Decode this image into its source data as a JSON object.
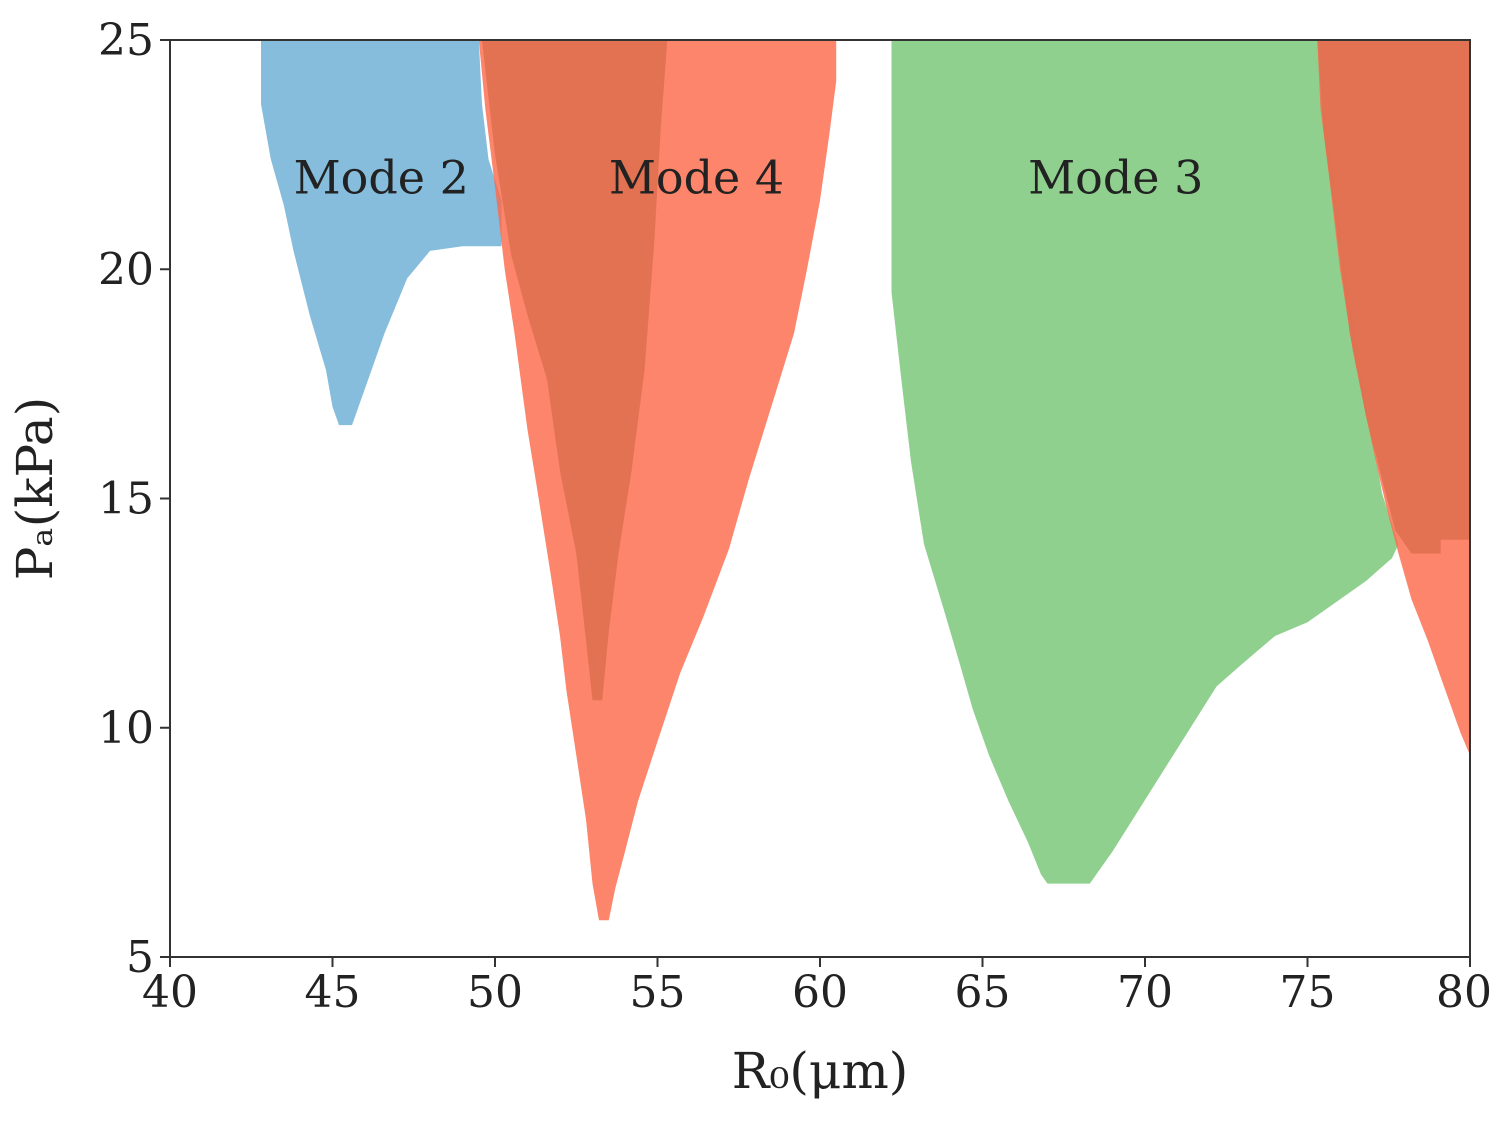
{
  "chart_data": {
    "type": "area",
    "title": "",
    "xlabel": "R₀(μm)",
    "ylabel": "Pₐ(kPa)",
    "xlim": [
      40,
      80
    ],
    "ylim": [
      5,
      25
    ],
    "xticks": [
      40,
      45,
      50,
      55,
      60,
      65,
      70,
      75,
      80
    ],
    "yticks": [
      5,
      10,
      15,
      20,
      25
    ],
    "grid": false,
    "legend": "none",
    "series": [
      {
        "name": "Mode 2",
        "color": "#6baed6",
        "opacity": 0.82,
        "outline": [
          [
            42.8,
            25
          ],
          [
            42.8,
            23.6
          ],
          [
            43.1,
            22.4
          ],
          [
            43.5,
            21.4
          ],
          [
            43.8,
            20.4
          ],
          [
            44.3,
            19.0
          ],
          [
            44.8,
            17.8
          ],
          [
            45.0,
            17.0
          ],
          [
            45.2,
            16.6
          ],
          [
            45.6,
            16.6
          ],
          [
            46.0,
            17.4
          ],
          [
            46.6,
            18.6
          ],
          [
            47.3,
            19.8
          ],
          [
            48.0,
            20.4
          ],
          [
            49.0,
            20.5
          ],
          [
            50.2,
            20.5
          ],
          [
            50.2,
            21.5
          ],
          [
            49.8,
            22.4
          ],
          [
            49.6,
            23.6
          ],
          [
            49.5,
            25
          ]
        ]
      },
      {
        "name": "Mode 4",
        "color": "#fb6a4a",
        "opacity": 0.82,
        "outline": [
          [
            49.5,
            25
          ],
          [
            49.7,
            23.5
          ],
          [
            50.0,
            21.8
          ],
          [
            50.3,
            20.0
          ],
          [
            50.6,
            18.6
          ],
          [
            51.0,
            16.5
          ],
          [
            51.3,
            15.2
          ],
          [
            51.7,
            13.4
          ],
          [
            52.0,
            12.0
          ],
          [
            52.2,
            10.8
          ],
          [
            52.5,
            9.4
          ],
          [
            52.8,
            8.0
          ],
          [
            53.0,
            6.6
          ],
          [
            53.2,
            5.8
          ],
          [
            53.5,
            5.8
          ],
          [
            53.7,
            6.5
          ],
          [
            54.0,
            7.3
          ],
          [
            54.4,
            8.4
          ],
          [
            55.0,
            9.7
          ],
          [
            55.7,
            11.2
          ],
          [
            56.4,
            12.4
          ],
          [
            57.2,
            13.9
          ],
          [
            57.8,
            15.4
          ],
          [
            58.5,
            17.0
          ],
          [
            59.2,
            18.6
          ],
          [
            59.6,
            20.0
          ],
          [
            60.0,
            21.5
          ],
          [
            60.3,
            23.0
          ],
          [
            60.5,
            24.1
          ],
          [
            60.5,
            25
          ]
        ]
      },
      {
        "name": "Mode 4 overlap",
        "color": "#e07050",
        "opacity": 0.9,
        "outline": [
          [
            49.6,
            25
          ],
          [
            50.0,
            22.5
          ],
          [
            50.5,
            20.3
          ],
          [
            51.0,
            19.0
          ],
          [
            51.6,
            17.6
          ],
          [
            52.0,
            15.6
          ],
          [
            52.5,
            13.8
          ],
          [
            52.8,
            11.9
          ],
          [
            53.0,
            10.6
          ],
          [
            53.3,
            10.6
          ],
          [
            53.5,
            12.1
          ],
          [
            53.8,
            13.8
          ],
          [
            54.2,
            15.6
          ],
          [
            54.6,
            17.8
          ],
          [
            54.9,
            20.6
          ],
          [
            55.1,
            23.1
          ],
          [
            55.3,
            25
          ]
        ]
      },
      {
        "name": "Mode 3",
        "color": "#7fc97f",
        "opacity": 0.88,
        "outline": [
          [
            62.2,
            25
          ],
          [
            62.2,
            19.5
          ],
          [
            62.5,
            17.6
          ],
          [
            62.8,
            15.8
          ],
          [
            63.2,
            14.0
          ],
          [
            63.8,
            12.6
          ],
          [
            64.3,
            11.4
          ],
          [
            64.7,
            10.4
          ],
          [
            65.2,
            9.4
          ],
          [
            65.8,
            8.4
          ],
          [
            66.4,
            7.5
          ],
          [
            66.8,
            6.8
          ],
          [
            67.0,
            6.6
          ],
          [
            68.3,
            6.6
          ],
          [
            69.0,
            7.3
          ],
          [
            69.8,
            8.2
          ],
          [
            70.6,
            9.1
          ],
          [
            71.4,
            10.0
          ],
          [
            72.2,
            10.9
          ],
          [
            73.0,
            11.4
          ],
          [
            74.0,
            12.0
          ],
          [
            75.0,
            12.3
          ],
          [
            76.0,
            12.8
          ],
          [
            76.8,
            13.2
          ],
          [
            77.6,
            13.7
          ],
          [
            77.8,
            14.0
          ],
          [
            77.3,
            15.1
          ],
          [
            76.9,
            16.7
          ],
          [
            76.5,
            18.5
          ],
          [
            76.1,
            20.3
          ],
          [
            75.8,
            22.0
          ],
          [
            75.5,
            23.5
          ],
          [
            75.3,
            25
          ]
        ]
      },
      {
        "name": "Mode 4 (upper right)",
        "color": "#fb6a4a",
        "opacity": 0.82,
        "outline": [
          [
            75.3,
            25
          ],
          [
            75.4,
            23.5
          ],
          [
            75.7,
            21.8
          ],
          [
            76.0,
            20.0
          ],
          [
            76.4,
            18.2
          ],
          [
            76.8,
            16.8
          ],
          [
            77.2,
            15.5
          ],
          [
            77.5,
            14.6
          ],
          [
            77.8,
            13.8
          ],
          [
            78.2,
            12.8
          ],
          [
            78.7,
            11.9
          ],
          [
            79.2,
            10.9
          ],
          [
            79.7,
            9.9
          ],
          [
            80.0,
            9.4
          ],
          [
            80,
            25
          ]
        ]
      },
      {
        "name": "Mode 4 (upper right overlap)",
        "color": "#e07050",
        "opacity": 0.9,
        "outline": [
          [
            75.3,
            25
          ],
          [
            75.5,
            23.0
          ],
          [
            75.9,
            20.8
          ],
          [
            76.3,
            18.6
          ],
          [
            76.8,
            16.8
          ],
          [
            77.3,
            15.4
          ],
          [
            77.7,
            14.3
          ],
          [
            78.2,
            13.8
          ],
          [
            79.1,
            13.8
          ],
          [
            79.1,
            14.1
          ],
          [
            80.0,
            14.1
          ],
          [
            80,
            25
          ]
        ]
      }
    ],
    "annotations": [
      {
        "text": "Mode 2",
        "x": 46.5,
        "y": 22.0
      },
      {
        "text": "Mode 4",
        "x": 56.2,
        "y": 22.0
      },
      {
        "text": "Mode 3",
        "x": 69.1,
        "y": 22.0
      }
    ]
  }
}
